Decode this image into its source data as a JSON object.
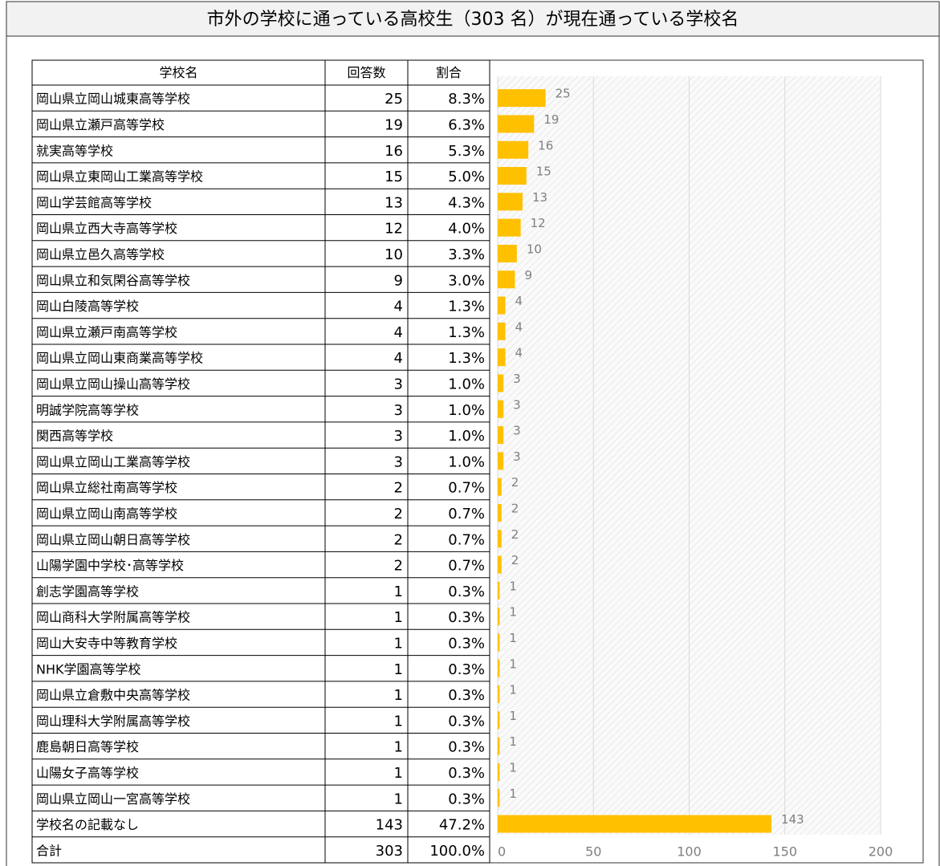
{
  "title": "市外の学校に通っている高校生（303 名）が現在通っている学校名",
  "table": {
    "header": [
      "学校名",
      "回答数",
      "割合"
    ],
    "rows": [
      [
        "岡山県立岡山城東高等学校",
        "25",
        "8.3%"
      ],
      [
        "岡山県立瀬戸高等学校",
        "19",
        "6.3%"
      ],
      [
        "就実高等学校",
        "16",
        "5.3%"
      ],
      [
        "岡山県立東岡山工業高等学校",
        "15",
        "5.0%"
      ],
      [
        "岡山学芸館高等学校",
        "13",
        "4.3%"
      ],
      [
        "岡山県立西大寺高等学校",
        "12",
        "4.0%"
      ],
      [
        "岡山県立邑久高等学校",
        "10",
        "3.3%"
      ],
      [
        "岡山県立和気閑谷高等学校",
        "9",
        "3.0%"
      ],
      [
        "岡山白陵高等学校",
        "4",
        "1.3%"
      ],
      [
        "岡山県立瀬戸南高等学校",
        "4",
        "1.3%"
      ],
      [
        "岡山県立岡山東商業高等学校",
        "4",
        "1.3%"
      ],
      [
        "岡山県立岡山操山高等学校",
        "3",
        "1.0%"
      ],
      [
        "明誠学院高等学校",
        "3",
        "1.0%"
      ],
      [
        "関西高等学校",
        "3",
        "1.0%"
      ],
      [
        "岡山県立岡山工業高等学校",
        "3",
        "1.0%"
      ],
      [
        "岡山県立総社南高等学校",
        "2",
        "0.7%"
      ],
      [
        "岡山県立岡山南高等学校",
        "2",
        "0.7%"
      ],
      [
        "岡山県立岡山朝日高等学校",
        "2",
        "0.7%"
      ],
      [
        "山陽学園中学校･高等学校",
        "2",
        "0.7%"
      ],
      [
        "創志学園高等学校",
        "1",
        "0.3%"
      ],
      [
        "岡山商科大学附属高等学校",
        "1",
        "0.3%"
      ],
      [
        "岡山大安寺中等教育学校",
        "1",
        "0.3%"
      ],
      [
        "NHK学園高等学校",
        "1",
        "0.3%"
      ],
      [
        "岡山県立倉敷中央高等学校",
        "1",
        "0.3%"
      ],
      [
        "岡山理科大学附属高等学校",
        "1",
        "0.3%"
      ],
      [
        "鹿島朝日高等学校",
        "1",
        "0.3%"
      ],
      [
        "山陽女子高等学校",
        "1",
        "0.3%"
      ],
      [
        "岡山県立岡山一宮高等学校",
        "1",
        "0.3%"
      ],
      [
        "学校名の記載なし",
        "143",
        "47.2%"
      ],
      [
        "合計",
        "303",
        "100.0%"
      ]
    ]
  },
  "chart_data": {
    "type": "bar",
    "orientation": "horizontal",
    "values": [
      25,
      19,
      16,
      15,
      13,
      12,
      10,
      9,
      4,
      4,
      4,
      3,
      3,
      3,
      3,
      2,
      2,
      2,
      2,
      1,
      1,
      1,
      1,
      1,
      1,
      1,
      1,
      1,
      143
    ],
    "color": "#ffc000",
    "xlim": [
      0,
      200
    ],
    "xticks": [
      0,
      50,
      100,
      150,
      200
    ],
    "grid": true
  }
}
